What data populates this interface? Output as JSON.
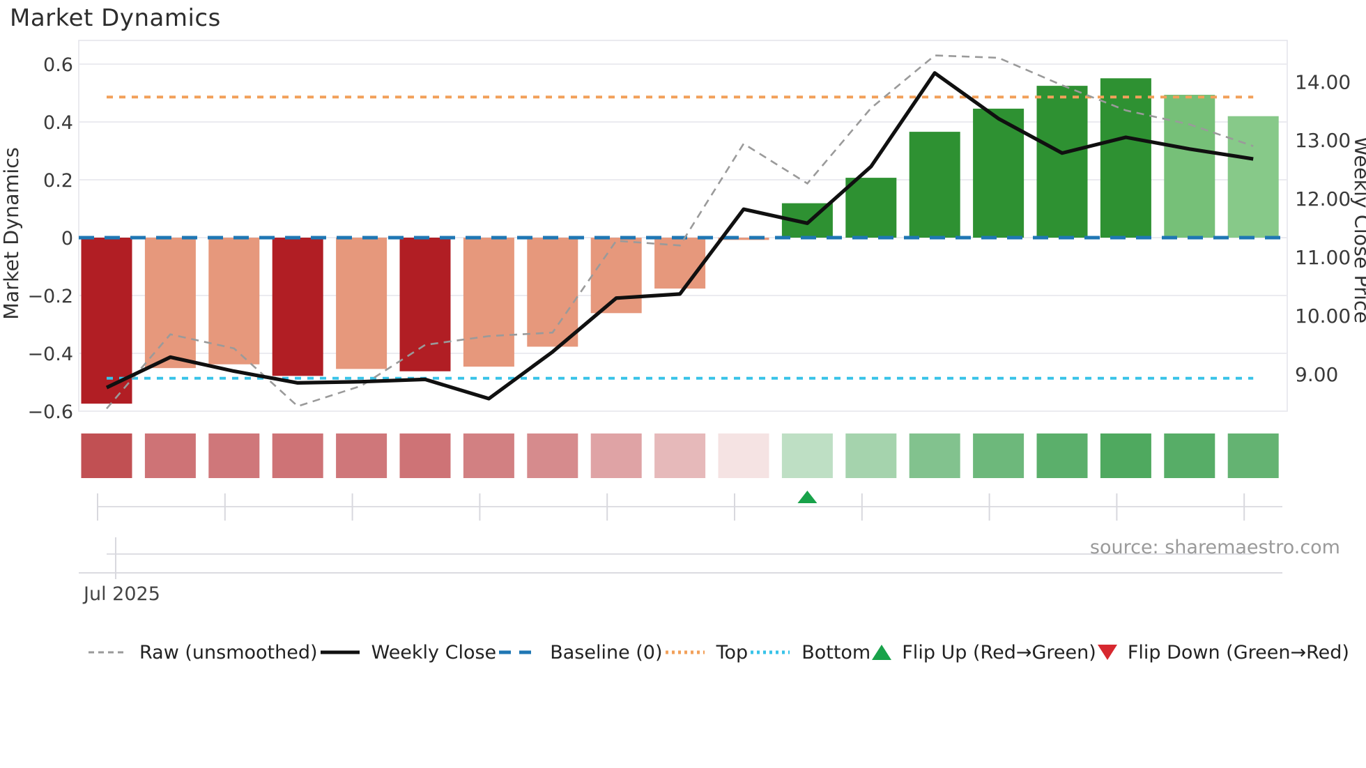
{
  "title": "Market Dynamics",
  "source_text": "source: sharemaestro.com",
  "axes": {
    "left_label": "Market Dynamics",
    "right_label": "Weekly Close Price",
    "left_ticks": [
      {
        "label": "0.6",
        "value": 0.6
      },
      {
        "label": "0.4",
        "value": 0.4
      },
      {
        "label": "0.2",
        "value": 0.2
      },
      {
        "label": "0",
        "value": 0.0
      },
      {
        "label": "−0.2",
        "value": -0.2
      },
      {
        "label": "−0.4",
        "value": -0.4
      },
      {
        "label": "−0.6",
        "value": -0.6
      }
    ],
    "right_ticks": [
      {
        "label": "14.00",
        "value": 14
      },
      {
        "label": "13.00",
        "value": 13
      },
      {
        "label": "12.00",
        "value": 12
      },
      {
        "label": "11.00",
        "value": 11
      },
      {
        "label": "10.00",
        "value": 10
      },
      {
        "label": "9.00",
        "value": 9
      }
    ],
    "x_label": "Jul 2025"
  },
  "legend": [
    {
      "label": "Raw (unsmoothed)",
      "swatch": "dashed-line",
      "color": "#9a9a9a"
    },
    {
      "label": "Weekly Close",
      "swatch": "solid-line",
      "color": "#101010"
    },
    {
      "label": "Baseline (0)",
      "swatch": "longdash-line",
      "color": "#1f77b4"
    },
    {
      "label": "Top",
      "swatch": "dotted-line",
      "color": "#f2a05a"
    },
    {
      "label": "Bottom",
      "swatch": "dotted-line",
      "color": "#38c3e8"
    },
    {
      "label": "Flip Up (Red→Green)",
      "swatch": "triangle-up",
      "color": "#18a24a"
    },
    {
      "label": "Flip Down (Green→Red)",
      "swatch": "triangle-down",
      "color": "#d7282f"
    }
  ],
  "colors": {
    "bar_dark_red": "#b11e24",
    "bar_salmon": "#e6987c",
    "bar_green": "#2e9132",
    "bar_light_green_1": "#76c078",
    "bar_light_green_2": "#87c989",
    "baseline": "#1f77b4",
    "top_line": "#f2a05a",
    "bottom_line": "#38c3e8",
    "raw_line": "#9a9a9a",
    "close_line": "#101010",
    "grid": "#ebebf0",
    "spine": "#e3e3ea",
    "axis_text": "#3a3a3a",
    "muted_text": "#9a9a9a",
    "flip_up_marker": "#18a24a"
  },
  "chart_data": {
    "type": "bar",
    "title": "Market Dynamics",
    "x_weeks": [
      1,
      2,
      3,
      4,
      5,
      6,
      7,
      8,
      9,
      10,
      11,
      12,
      13,
      14,
      15,
      16,
      17,
      18,
      19
    ],
    "x_axis_label": "Jul 2025",
    "left_axis": {
      "label": "Market Dynamics",
      "range": [
        -0.6,
        0.682
      ],
      "gridlines": [
        0.6,
        0.4,
        0.2,
        0,
        -0.2,
        -0.4,
        -0.6
      ]
    },
    "right_axis": {
      "label": "Weekly Close Price",
      "range": [
        8.37,
        14.71
      ],
      "ticks": [
        14,
        13,
        12,
        11,
        10,
        9
      ]
    },
    "series": [
      {
        "name": "Market Dynamics",
        "type": "bar",
        "axis": "left",
        "values": [
          -0.574,
          -0.451,
          -0.438,
          -0.478,
          -0.454,
          -0.462,
          -0.446,
          -0.377,
          -0.261,
          -0.176,
          -0.008,
          0.119,
          0.207,
          0.366,
          0.446,
          0.525,
          0.551,
          0.494,
          0.42
        ],
        "bar_colors": [
          "bar_dark_red",
          "bar_salmon",
          "bar_salmon",
          "bar_dark_red",
          "bar_salmon",
          "bar_dark_red",
          "bar_salmon",
          "bar_salmon",
          "bar_salmon",
          "bar_salmon",
          "bar_salmon",
          "bar_green",
          "bar_green",
          "bar_green",
          "bar_green",
          "bar_green",
          "bar_green",
          "bar_light_green_1",
          "bar_light_green_2"
        ]
      },
      {
        "name": "Raw (unsmoothed)",
        "type": "line",
        "axis": "right",
        "style": "dashed",
        "values": [
          8.41,
          9.68,
          9.44,
          8.45,
          8.8,
          9.5,
          9.65,
          9.71,
          11.28,
          11.2,
          12.94,
          12.26,
          13.55,
          14.45,
          14.41,
          13.94,
          13.51,
          13.27,
          12.9
        ]
      },
      {
        "name": "Weekly Close",
        "type": "line",
        "axis": "right",
        "style": "solid",
        "values": [
          8.77,
          9.29,
          9.05,
          8.85,
          8.87,
          8.91,
          8.58,
          9.38,
          10.3,
          10.37,
          11.82,
          11.58,
          12.55,
          14.15,
          13.37,
          12.78,
          13.05,
          12.85,
          12.68
        ]
      }
    ],
    "reference_lines": [
      {
        "name": "Baseline (0)",
        "axis": "left",
        "value": 0,
        "style": "longdash",
        "color": "baseline"
      },
      {
        "name": "Top",
        "axis": "left",
        "value": 0.486,
        "style": "dotted",
        "color": "top_line"
      },
      {
        "name": "Bottom",
        "axis": "left",
        "value": -0.486,
        "style": "dotted",
        "color": "bottom_line"
      }
    ],
    "markers": [
      {
        "name": "Flip Up (Red→Green)",
        "week_index": 11,
        "shape": "triangle-up",
        "color": "flip_up_marker"
      }
    ],
    "strip": {
      "note": "red-to-green intensity strip under plot, one cell per week",
      "cells": [
        "rgba(178,36,40,0.80)",
        "rgba(178,36,40,0.64)",
        "rgba(178,36,40,0.62)",
        "rgba(178,36,40,0.64)",
        "rgba(178,36,40,0.62)",
        "rgba(178,36,40,0.64)",
        "rgba(178,36,40,0.58)",
        "rgba(178,36,40,0.53)",
        "rgba(178,36,40,0.42)",
        "rgba(178,36,40,0.32)",
        "rgba(178,36,40,0.13)",
        "rgba(40,150,60,0.30)",
        "rgba(40,150,60,0.42)",
        "rgba(40,150,60,0.58)",
        "rgba(40,150,60,0.68)",
        "rgba(40,150,60,0.76)",
        "rgba(40,150,60,0.82)",
        "rgba(40,150,60,0.78)",
        "rgba(40,150,60,0.72)"
      ]
    },
    "legend_position": "bottom",
    "grid_on": true
  }
}
